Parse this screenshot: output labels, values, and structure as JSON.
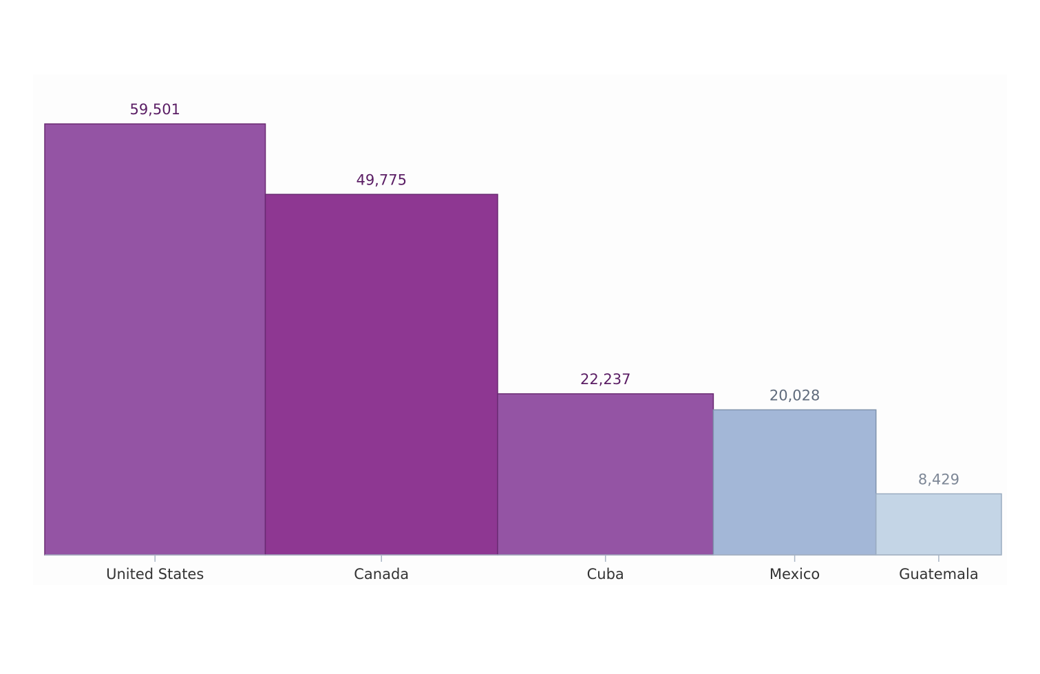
{
  "chart_data": {
    "type": "bar",
    "title": "",
    "xlabel": "",
    "ylabel": "",
    "ylim": [
      0,
      59501
    ],
    "grid": false,
    "legend": "none",
    "categories": [
      "United States",
      "Canada",
      "Cuba",
      "Mexico",
      "Guatemala"
    ],
    "values": [
      59501,
      49775,
      22237,
      20028,
      8429
    ],
    "value_labels": [
      "59,501",
      "49,775",
      "22,237",
      "20,028",
      "8,429"
    ],
    "widths": [
      320,
      337,
      313,
      236,
      182
    ],
    "bar_colors": [
      "#9454a4",
      "#8e3792",
      "#9454a4",
      "#a3b7d7",
      "#c4d5e6"
    ],
    "bar_stroke_colors": [
      "#6a2a72",
      "#6a2a72",
      "#6a2a72",
      "#7f93ad",
      "#9aabc0"
    ],
    "value_label_colors": [
      "#5a1d64",
      "#5a1d64",
      "#5a1d64",
      "#5f6b7c",
      "#7d8796"
    ],
    "axis_color": "#a8b4c4",
    "tick_label_color": "#333333",
    "plot_background": "#fdfdfd"
  }
}
